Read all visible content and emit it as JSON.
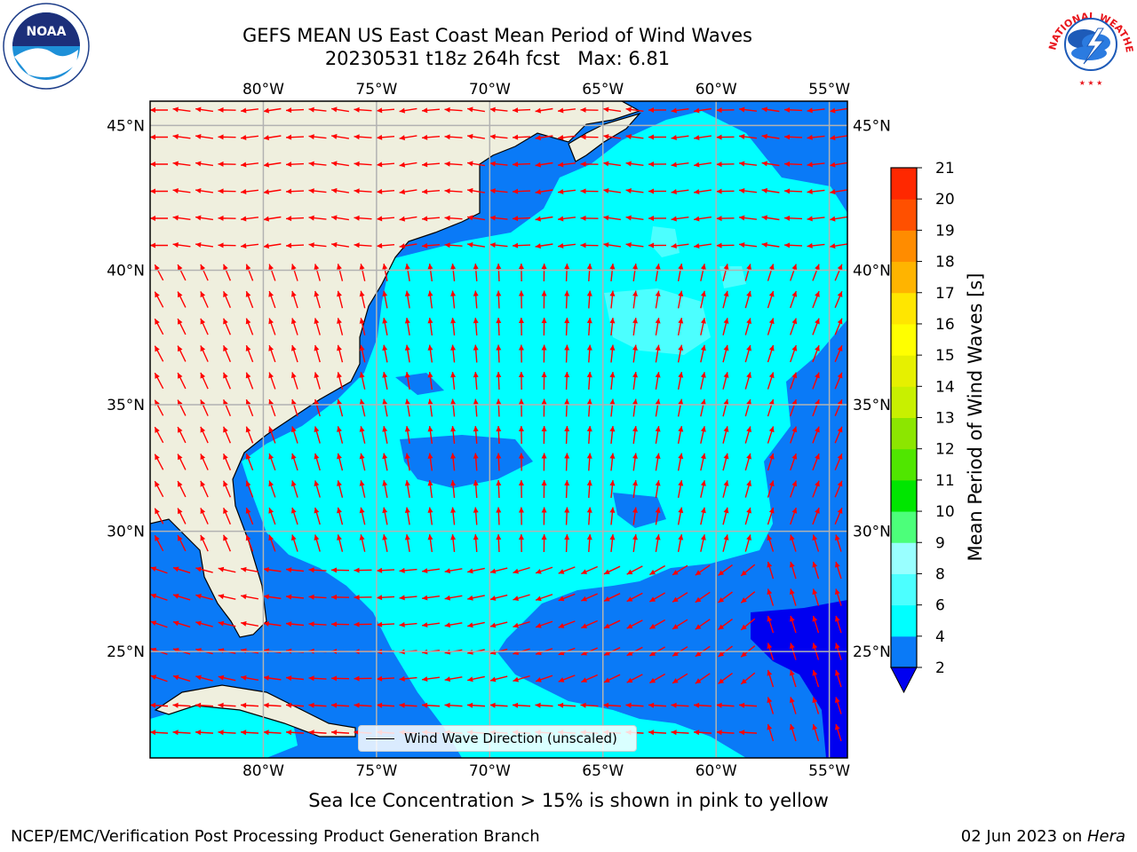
{
  "title": {
    "line1": "GEFS MEAN US East Coast Mean Period of Wind Waves",
    "line2": "20230531 t18z 264h fcst   Max: 6.81"
  },
  "logos": {
    "left": {
      "icon": "noaa-logo",
      "text": "NOAA"
    },
    "right": {
      "icon": "national-weather-service-logo",
      "text": "NATIONAL WEATHER SERVICE"
    }
  },
  "map": {
    "extent": {
      "lon": [
        -85,
        -54.2
      ],
      "lat": [
        20.4,
        45.8
      ]
    },
    "lon_ticks": [
      "80°W",
      "75°W",
      "70°W",
      "65°W",
      "60°W",
      "55°W"
    ],
    "lat_ticks": [
      "45°N",
      "40°N",
      "35°N",
      "30°N",
      "25°N"
    ],
    "colors": {
      "land": "#efefde",
      "period_2_4": "#0a7af7",
      "period_4_6": "#00ffff",
      "period_6_8": "#4cffff",
      "below_2": "#0000f0",
      "arrow": "#ff0000",
      "grid": "#b2b2b2"
    }
  },
  "legend": {
    "label": "Wind Wave Direction (unscaled)"
  },
  "colorbar": {
    "label": "Mean Period of Wind Waves [s]",
    "ticks": [
      "2",
      "4",
      "6",
      "8",
      "9",
      "10",
      "11",
      "12",
      "13",
      "14",
      "15",
      "16",
      "17",
      "18",
      "19",
      "20",
      "21"
    ],
    "colors": [
      "#0a7af7",
      "#00ffff",
      "#4cffff",
      "#99ffff",
      "#4cff7a",
      "#00e600",
      "#50e600",
      "#8ce600",
      "#c8f000",
      "#e6f000",
      "#ffff00",
      "#ffe600",
      "#ffb400",
      "#ff8c00",
      "#ff5000",
      "#ff2800",
      "#ff0000"
    ],
    "extend_color": "#0000f0"
  },
  "caption": "Sea Ice Concentration > 15% is shown in pink to yellow",
  "footer": {
    "left": "NCEP/EMC/Verification Post Processing Product Generation Branch",
    "date": "02 Jun 2023 on ",
    "machine": "Hera"
  }
}
